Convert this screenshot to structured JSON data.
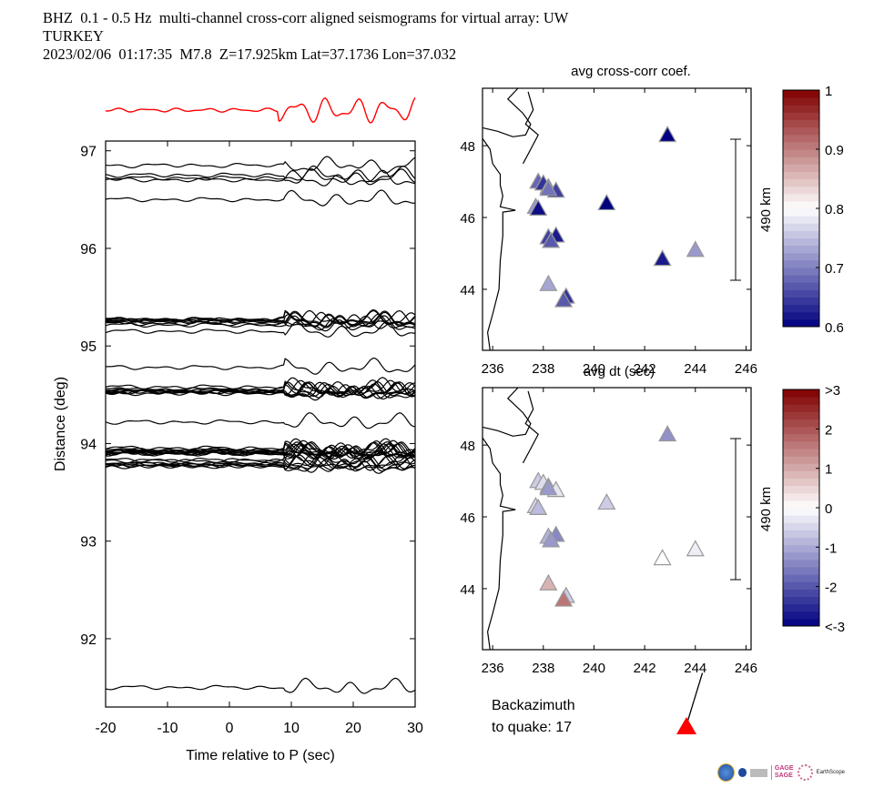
{
  "header": {
    "line1": "BHZ  0.1 - 0.5 Hz  multi-channel cross-corr aligned seismograms for virtual array: UW",
    "line2": "TURKEY",
    "line3": "2023/02/06  01:17:35  M7.8  Z=17.925km Lat=37.1736 Lon=37.032"
  },
  "chart_data": [
    {
      "type": "line",
      "name": "seismogram-section",
      "title": "",
      "xlabel": "Time relative to P (sec)",
      "ylabel": "Distance (deg)",
      "xlim": [
        -20,
        30
      ],
      "ylim": [
        91.3,
        97.1
      ],
      "xticks": [
        -20,
        -10,
        0,
        10,
        20,
        30
      ],
      "yticks": [
        92,
        93,
        94,
        95,
        96,
        97
      ],
      "stack_trace_color": "#ff0000",
      "trace_color": "#000000",
      "trace_groups": [
        {
          "distance": 96.85,
          "count": 1
        },
        {
          "distance": 96.75,
          "count": 1
        },
        {
          "distance": 96.7,
          "count": 2
        },
        {
          "distance": 96.5,
          "count": 1
        },
        {
          "distance": 95.25,
          "count": 8
        },
        {
          "distance": 95.15,
          "count": 1
        },
        {
          "distance": 94.78,
          "count": 1
        },
        {
          "distance": 94.55,
          "count": 10
        },
        {
          "distance": 94.22,
          "count": 1
        },
        {
          "distance": 93.92,
          "count": 12
        },
        {
          "distance": 93.8,
          "count": 8
        },
        {
          "distance": 91.5,
          "count": 1
        }
      ]
    },
    {
      "type": "scatter",
      "name": "map-cross-corr",
      "title": "avg cross-corr coef.",
      "xlabel": "avg dt (sec)",
      "xlim": [
        235.6,
        246.2
      ],
      "ylim": [
        42.3,
        49.6
      ],
      "xticks": [
        236,
        238,
        240,
        242,
        244,
        246
      ],
      "yticks": [
        44,
        46,
        48
      ],
      "scale_bar": "490 km",
      "colorbar": {
        "min": 0.6,
        "max": 1,
        "ticks": [
          "0.6",
          "0.7",
          "0.8",
          "0.9",
          "1"
        ]
      },
      "points": [
        {
          "lon": 242.9,
          "lat": 48.3,
          "value": 0.6
        },
        {
          "lon": 237.8,
          "lat": 47.0,
          "value": 0.68
        },
        {
          "lon": 238.0,
          "lat": 46.95,
          "value": 0.64
        },
        {
          "lon": 238.2,
          "lat": 46.85,
          "value": 0.66
        },
        {
          "lon": 238.5,
          "lat": 46.75,
          "value": 0.65
        },
        {
          "lon": 238.2,
          "lat": 46.8,
          "value": 0.69
        },
        {
          "lon": 240.5,
          "lat": 46.4,
          "value": 0.6
        },
        {
          "lon": 237.7,
          "lat": 46.3,
          "value": 0.72
        },
        {
          "lon": 237.8,
          "lat": 46.25,
          "value": 0.61
        },
        {
          "lon": 238.5,
          "lat": 45.5,
          "value": 0.62
        },
        {
          "lon": 238.2,
          "lat": 45.45,
          "value": 0.65
        },
        {
          "lon": 238.3,
          "lat": 45.35,
          "value": 0.67
        },
        {
          "lon": 242.7,
          "lat": 44.85,
          "value": 0.62
        },
        {
          "lon": 244.0,
          "lat": 45.1,
          "value": 0.72
        },
        {
          "lon": 238.2,
          "lat": 44.15,
          "value": 0.73
        },
        {
          "lon": 238.9,
          "lat": 43.8,
          "value": 0.64
        },
        {
          "lon": 238.8,
          "lat": 43.7,
          "value": 0.67
        }
      ]
    },
    {
      "type": "scatter",
      "name": "map-dt",
      "title": "",
      "xlabel": "",
      "xlim": [
        235.6,
        246.2
      ],
      "ylim": [
        42.3,
        49.6
      ],
      "xticks": [
        236,
        238,
        240,
        242,
        244,
        246
      ],
      "yticks": [
        44,
        46,
        48
      ],
      "scale_bar": "490 km",
      "colorbar": {
        "min": -3,
        "max": 3,
        "ticks": [
          "<-3",
          "-2",
          "-1",
          "0",
          "1",
          "2",
          ">3"
        ]
      },
      "points": [
        {
          "lon": 242.9,
          "lat": 48.3,
          "value": -1.3
        },
        {
          "lon": 237.8,
          "lat": 47.0,
          "value": -0.6
        },
        {
          "lon": 238.0,
          "lat": 46.95,
          "value": -0.4
        },
        {
          "lon": 238.2,
          "lat": 46.85,
          "value": -0.7
        },
        {
          "lon": 238.5,
          "lat": 46.75,
          "value": -0.3
        },
        {
          "lon": 238.2,
          "lat": 46.8,
          "value": -1.2
        },
        {
          "lon": 240.5,
          "lat": 46.4,
          "value": -0.6
        },
        {
          "lon": 237.7,
          "lat": 46.3,
          "value": -0.5
        },
        {
          "lon": 237.8,
          "lat": 46.25,
          "value": -0.8
        },
        {
          "lon": 238.5,
          "lat": 45.5,
          "value": -1.4
        },
        {
          "lon": 238.2,
          "lat": 45.45,
          "value": -0.9
        },
        {
          "lon": 238.3,
          "lat": 45.35,
          "value": -1.2
        },
        {
          "lon": 242.7,
          "lat": 44.85,
          "value": 0.0
        },
        {
          "lon": 244.0,
          "lat": 45.1,
          "value": -0.2
        },
        {
          "lon": 238.2,
          "lat": 44.15,
          "value": 0.9
        },
        {
          "lon": 238.9,
          "lat": 43.8,
          "value": -0.6
        },
        {
          "lon": 238.8,
          "lat": 43.7,
          "value": 1.6
        }
      ]
    }
  ],
  "backazimuth": {
    "label_line1": "Backazimuth",
    "label_line2": "to quake:  17",
    "value": 17,
    "marker_color": "#ff0000"
  },
  "logos": {
    "gage": "GAGE",
    "sage": "SAGE",
    "earthscope": "EarthScope"
  }
}
